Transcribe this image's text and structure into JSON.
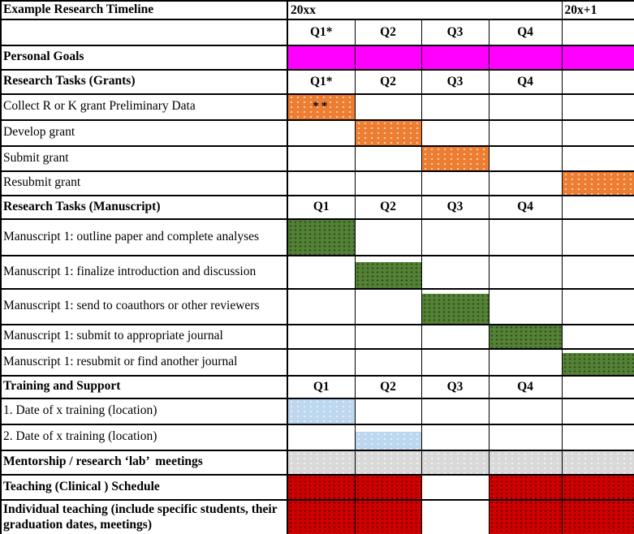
{
  "colors": {
    "magenta": "#FF00FF",
    "orange": "#ED7D31",
    "green": "#538135",
    "blue": "#BDD7EE",
    "gray": "#D9D9D9",
    "red": "#D00000"
  },
  "table": {
    "rows": [
      {
        "label": "Example Research Timeline",
        "bold": true,
        "cells": [
          {
            "span": 4,
            "text": "20xx",
            "align": "left",
            "bold": true,
            "name": "year-header-20xx"
          },
          {
            "text": "20x+1",
            "align": "left",
            "bold": true,
            "name": "year-header-20x-plus-1"
          }
        ]
      },
      {
        "label": "",
        "bold": false,
        "cells": [
          {
            "text": "Q1*",
            "bold": true,
            "name": "quarter-header-q1"
          },
          {
            "text": "Q2",
            "bold": true,
            "name": "quarter-header-q2"
          },
          {
            "text": "Q3",
            "bold": true,
            "name": "quarter-header-q3"
          },
          {
            "text": "Q4",
            "bold": true,
            "name": "quarter-header-q4"
          },
          {
            "name": "empty-cell"
          }
        ]
      },
      {
        "label": "Personal Goals",
        "bold": true,
        "cells": [
          {
            "fill": "magenta"
          },
          {
            "fill": "magenta"
          },
          {
            "fill": "magenta"
          },
          {
            "fill": "magenta"
          },
          {
            "fill": "magenta"
          }
        ]
      },
      {
        "label": "Research Tasks (Grants)",
        "bold": true,
        "cells": [
          {
            "text": "Q1*",
            "bold": true,
            "name": "quarter-header-q1"
          },
          {
            "text": "Q2",
            "bold": true,
            "name": "quarter-header-q2"
          },
          {
            "text": "Q3",
            "bold": true,
            "name": "quarter-header-q3"
          },
          {
            "text": "Q4",
            "bold": true,
            "name": "quarter-header-q4"
          },
          {
            "name": "empty-cell"
          }
        ]
      },
      {
        "label": "Collect R or K grant Preliminary Data",
        "bold": false,
        "cells": [
          {
            "fill": "orange",
            "text": "**"
          },
          {},
          {},
          {},
          {}
        ]
      },
      {
        "label": "Develop grant",
        "bold": false,
        "cells": [
          {},
          {
            "fill": "orange"
          },
          {},
          {},
          {}
        ]
      },
      {
        "label": "Submit grant",
        "bold": false,
        "cells": [
          {},
          {},
          {
            "fill": "orange"
          },
          {},
          {}
        ]
      },
      {
        "label": "Resubmit grant",
        "bold": false,
        "cells": [
          {},
          {},
          {},
          {},
          {
            "fill": "orange"
          }
        ]
      },
      {
        "label": "Research Tasks (Manuscript)",
        "bold": true,
        "cells": [
          {
            "text": "Q1",
            "bold": true,
            "name": "quarter-header-q1"
          },
          {
            "text": "Q2",
            "bold": true,
            "name": "quarter-header-q2"
          },
          {
            "text": "Q3",
            "bold": true,
            "name": "quarter-header-q3"
          },
          {
            "text": "Q4",
            "bold": true,
            "name": "quarter-header-q4"
          },
          {
            "name": "empty-cell"
          }
        ]
      },
      {
        "label": "Manuscript 1: outline paper and complete analyses",
        "bold": false,
        "cells": [
          {
            "fill": "green"
          },
          {},
          {},
          {},
          {}
        ]
      },
      {
        "label": "Manuscript 1: finalize introduction and discussion",
        "bold": false,
        "cells": [
          {},
          {
            "fill": "green"
          },
          {},
          {},
          {}
        ]
      },
      {
        "label": "Manuscript 1: send to coauthors or other reviewers",
        "bold": false,
        "cells": [
          {},
          {},
          {
            "fill": "green"
          },
          {},
          {}
        ]
      },
      {
        "label": "Manuscript 1: submit to appropriate journal",
        "bold": false,
        "cells": [
          {},
          {},
          {},
          {
            "fill": "green"
          },
          {}
        ]
      },
      {
        "label": "Manuscript 1: resubmit or find another journal",
        "bold": false,
        "cells": [
          {},
          {},
          {},
          {},
          {
            "fill": "green"
          }
        ]
      },
      {
        "label": "Training and Support",
        "bold": true,
        "cells": [
          {
            "text": "Q1",
            "bold": true,
            "name": "quarter-header-q1"
          },
          {
            "text": "Q2",
            "bold": true,
            "name": "quarter-header-q2"
          },
          {
            "text": "Q3",
            "bold": true,
            "name": "quarter-header-q3"
          },
          {
            "text": "Q4",
            "bold": true,
            "name": "quarter-header-q4"
          },
          {
            "name": "empty-cell"
          }
        ]
      },
      {
        "label": "1. Date of x training (location)",
        "bold": false,
        "cells": [
          {
            "fill": "blue"
          },
          {},
          {},
          {},
          {}
        ]
      },
      {
        "label": "2. Date of x training (location)",
        "bold": false,
        "cells": [
          {},
          {
            "fill": "blue"
          },
          {},
          {},
          {}
        ]
      },
      {
        "label": "Mentorship / research ‘lab’  meetings",
        "bold": true,
        "cells": [
          {
            "fill": "gray"
          },
          {
            "fill": "gray"
          },
          {
            "fill": "gray"
          },
          {
            "fill": "gray"
          },
          {
            "fill": "gray"
          }
        ]
      },
      {
        "label": "Teaching (Clinical ) Schedule",
        "bold": true,
        "cells": [
          {
            "fill": "red"
          },
          {
            "fill": "red"
          },
          {},
          {
            "fill": "red"
          },
          {
            "fill": "red"
          }
        ]
      },
      {
        "label": "Individual teaching (include specific students, their graduation dates, meetings)",
        "bold": true,
        "cells": [
          {
            "fill": "red"
          },
          {
            "fill": "red"
          },
          {},
          {
            "fill": "red"
          },
          {
            "fill": "red"
          }
        ]
      }
    ]
  }
}
